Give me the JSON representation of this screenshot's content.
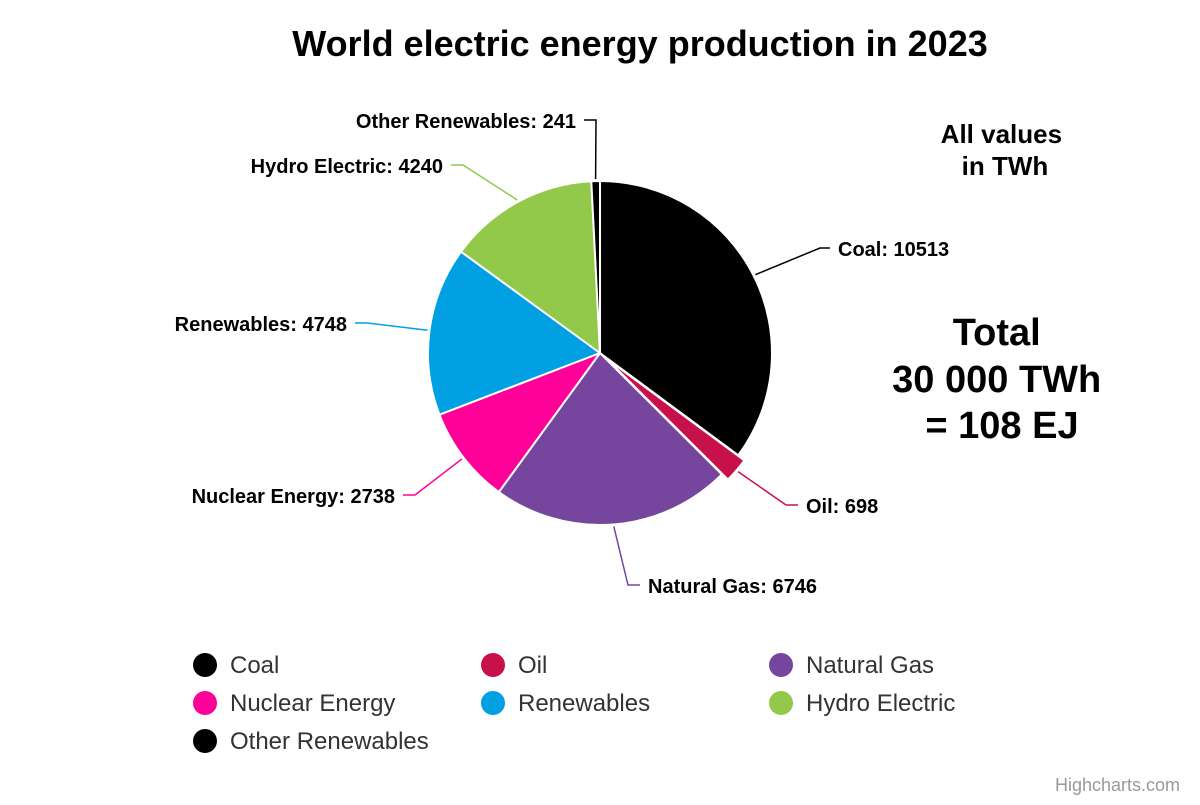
{
  "chart_data": {
    "type": "pie",
    "title": "World electric energy production in 2023",
    "categories": [
      "Coal",
      "Oil",
      "Natural Gas",
      "Nuclear Energy",
      "Renewables",
      "Hydro Electric",
      "Other Renewables"
    ],
    "values": [
      10513,
      698,
      6746,
      2738,
      4748,
      4240,
      241
    ],
    "colors": [
      "#000000",
      "#C8104A",
      "#76459E",
      "#FF0099",
      "#00A0E3",
      "#92C94A",
      "#000000"
    ],
    "data_label_format": "{name}: {value}",
    "legend_position": "bottom",
    "annotations": {
      "units_note": [
        "All values",
        "in TWh"
      ],
      "total": [
        "Total",
        "30 000 TWh",
        "= 108 EJ"
      ]
    },
    "credits": "Highcharts.com"
  }
}
